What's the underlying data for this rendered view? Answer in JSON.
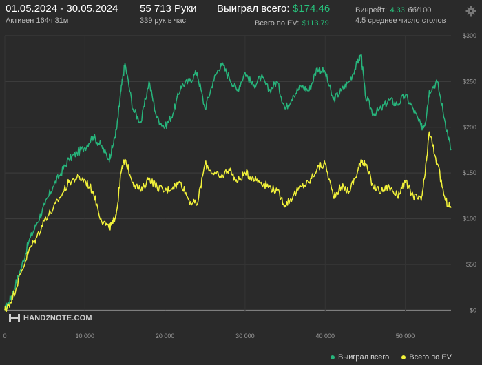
{
  "header": {
    "date_range": "01.05.2024 - 30.05.2024",
    "active_time": "Активен 164ч 31м",
    "hands": "55 713 Руки",
    "hands_per_hour": "339 рук в час",
    "won_label": "Выиграл всего:",
    "won_value": "$174.46",
    "ev_label": "Всего по EV:",
    "ev_value": "$113.79",
    "winrate_label": "Винрейт:",
    "winrate_value": "4.33",
    "winrate_unit": "бб/100",
    "tables": "4.5 среднее число столов"
  },
  "logo": {
    "text": "HAND2NOTE.COM"
  },
  "icons": {
    "settings": "gear-icon"
  },
  "colors": {
    "won": "#27b57c",
    "ev": "#f2f23a",
    "accent": "#27c27c",
    "background": "#2a2a2a"
  },
  "chart_data": {
    "type": "line",
    "xlabel": "",
    "ylabel": "",
    "x_ticks": [
      0,
      10000,
      20000,
      30000,
      40000,
      50000
    ],
    "x_tick_labels": [
      "0",
      "10 000",
      "20 000",
      "30 000",
      "40 000",
      "50 000"
    ],
    "y_ticks": [
      0,
      50,
      100,
      150,
      200,
      250,
      300
    ],
    "y_tick_labels": [
      "$0",
      "$50",
      "$100",
      "$150",
      "$200",
      "$250",
      "$300"
    ],
    "xlim": [
      0,
      55713
    ],
    "ylim": [
      -2,
      300
    ],
    "grid": true,
    "legend_position": "bottom-right",
    "series": [
      {
        "name": "Выиграл всего",
        "color": "#27b57c",
        "x": [
          0,
          500,
          1000,
          2000,
          3000,
          4000,
          5000,
          6000,
          7000,
          8000,
          9000,
          10000,
          11000,
          12000,
          13000,
          13500,
          14000,
          14500,
          15000,
          16000,
          17000,
          18000,
          19000,
          20000,
          21000,
          22000,
          23000,
          24000,
          25000,
          26000,
          27000,
          28000,
          29000,
          30000,
          31000,
          32000,
          33000,
          34000,
          35000,
          36000,
          37000,
          38000,
          39000,
          40000,
          41000,
          42000,
          43000,
          44000,
          44500,
          45000,
          46000,
          47000,
          48000,
          49000,
          50000,
          51000,
          52000,
          52500,
          53000,
          54000,
          55000,
          55713
        ],
        "y": [
          0,
          8,
          20,
          45,
          75,
          95,
          115,
          135,
          150,
          165,
          172,
          178,
          190,
          180,
          165,
          180,
          200,
          240,
          270,
          220,
          205,
          250,
          210,
          200,
          215,
          245,
          250,
          260,
          220,
          250,
          270,
          255,
          240,
          260,
          245,
          255,
          240,
          250,
          220,
          235,
          245,
          240,
          265,
          260,
          230,
          240,
          250,
          270,
          280,
          235,
          215,
          220,
          230,
          225,
          235,
          220,
          200,
          205,
          240,
          250,
          205,
          175
        ]
      },
      {
        "name": "Всего по EV",
        "color": "#f2f23a",
        "x": [
          0,
          500,
          1000,
          2000,
          3000,
          4000,
          5000,
          6000,
          7000,
          8000,
          9000,
          10000,
          11000,
          12000,
          13000,
          13500,
          14000,
          14500,
          15000,
          16000,
          17000,
          18000,
          19000,
          20000,
          21000,
          22000,
          23000,
          24000,
          25000,
          26000,
          27000,
          28000,
          29000,
          30000,
          31000,
          32000,
          33000,
          34000,
          35000,
          36000,
          37000,
          38000,
          39000,
          40000,
          41000,
          42000,
          43000,
          44000,
          44500,
          45000,
          46000,
          47000,
          48000,
          49000,
          50000,
          51000,
          52000,
          52500,
          53000,
          54000,
          55000,
          55713
        ],
        "y": [
          0,
          5,
          15,
          40,
          65,
          80,
          100,
          110,
          125,
          140,
          145,
          142,
          130,
          100,
          90,
          95,
          110,
          150,
          165,
          140,
          130,
          145,
          135,
          130,
          135,
          140,
          120,
          115,
          160,
          150,
          145,
          155,
          140,
          150,
          145,
          140,
          135,
          130,
          115,
          125,
          135,
          140,
          155,
          160,
          125,
          135,
          130,
          150,
          165,
          160,
          135,
          130,
          135,
          125,
          140,
          125,
          120,
          150,
          195,
          160,
          120,
          112
        ]
      }
    ]
  }
}
